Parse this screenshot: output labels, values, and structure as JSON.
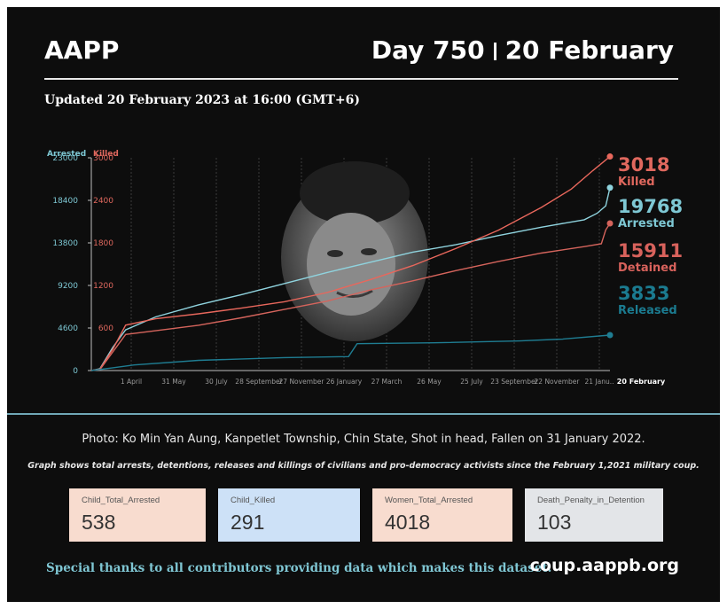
{
  "header": {
    "brand": "AAPP",
    "day": "Day 750",
    "date": "20 February",
    "updated": "Updated 20 February 2023 at 16:00 (GMT+6)"
  },
  "colors": {
    "arrested": "#8fd3de",
    "killed": "#e8675c",
    "detained": "#d5645c",
    "released": "#1f7d92",
    "arrested_label": "#7ec8d4",
    "killed_label": "#e0685e",
    "detained_label": "#d8625c",
    "released_label": "#1b7b90"
  },
  "chart_data": {
    "type": "line",
    "axis_titles": {
      "left": "Arrested",
      "right": "Killed"
    },
    "y_arrested_ticks": [
      "0",
      "4600",
      "9200",
      "13800",
      "18400",
      "23000"
    ],
    "y_killed_ticks": [
      "600",
      "1200",
      "1800",
      "2400",
      "3000"
    ],
    "x_ticks": [
      "1 April",
      "31 May",
      "30 July",
      "28 September",
      "27 November",
      "26 January",
      "27 March",
      "26 May",
      "25 July",
      "23 September",
      "22 November",
      "21 Janu..",
      "20 February"
    ],
    "ylim_arrested": [
      0,
      23000
    ],
    "ylim_killed": [
      0,
      3000
    ],
    "grid": "vertical dotted",
    "series": [
      {
        "name": "Arrested",
        "axis": "arrested",
        "final_value": 19768,
        "points": [
          [
            0,
            0
          ],
          [
            2,
            200
          ],
          [
            5,
            2500
          ],
          [
            8,
            4400
          ],
          [
            15,
            5800
          ],
          [
            25,
            7100
          ],
          [
            35,
            8200
          ],
          [
            45,
            9400
          ],
          [
            55,
            10600
          ],
          [
            65,
            11700
          ],
          [
            75,
            12800
          ],
          [
            85,
            13600
          ],
          [
            95,
            14600
          ],
          [
            105,
            15500
          ],
          [
            115,
            16300
          ],
          [
            118,
            17000
          ],
          [
            120,
            17800
          ],
          [
            121,
            19768
          ]
        ]
      },
      {
        "name": "Killed",
        "axis": "killed",
        "final_value": 3018,
        "points": [
          [
            0,
            0
          ],
          [
            2,
            20
          ],
          [
            5,
            300
          ],
          [
            8,
            640
          ],
          [
            15,
            730
          ],
          [
            25,
            800
          ],
          [
            35,
            880
          ],
          [
            45,
            970
          ],
          [
            55,
            1100
          ],
          [
            65,
            1280
          ],
          [
            75,
            1480
          ],
          [
            85,
            1720
          ],
          [
            95,
            1980
          ],
          [
            105,
            2300
          ],
          [
            112,
            2560
          ],
          [
            117,
            2820
          ],
          [
            121,
            3018
          ]
        ]
      },
      {
        "name": "Detained",
        "axis": "arrested",
        "final_value": 15911,
        "points": [
          [
            0,
            0
          ],
          [
            2,
            100
          ],
          [
            5,
            2000
          ],
          [
            8,
            3900
          ],
          [
            15,
            4300
          ],
          [
            25,
            4900
          ],
          [
            35,
            5700
          ],
          [
            45,
            6600
          ],
          [
            55,
            7500
          ],
          [
            65,
            8700
          ],
          [
            75,
            9700
          ],
          [
            85,
            10800
          ],
          [
            95,
            11800
          ],
          [
            105,
            12700
          ],
          [
            115,
            13400
          ],
          [
            119,
            13700
          ],
          [
            120,
            15200
          ],
          [
            121,
            15911
          ]
        ]
      },
      {
        "name": "Released",
        "axis": "arrested",
        "final_value": 3833,
        "points": [
          [
            0,
            0
          ],
          [
            5,
            300
          ],
          [
            10,
            600
          ],
          [
            25,
            1100
          ],
          [
            45,
            1400
          ],
          [
            60,
            1500
          ],
          [
            62,
            2900
          ],
          [
            80,
            3000
          ],
          [
            100,
            3200
          ],
          [
            110,
            3400
          ],
          [
            121,
            3833
          ]
        ]
      }
    ],
    "end_labels": [
      {
        "value": "3018",
        "name": "Killed"
      },
      {
        "value": "19768",
        "name": "Arrested"
      },
      {
        "value": "15911",
        "name": "Detained"
      },
      {
        "value": "3833",
        "name": "Released"
      }
    ]
  },
  "photo": {
    "icon": "portrait-photo"
  },
  "footer": {
    "photo_credit": "Photo: Ko Min Yan Aung,  Kanpetlet Township, Chin State, Shot in head, Fallen on 31 January 2022.",
    "graph_note": "Graph shows total arrests, detentions, releases and killings of civilians and pro-democracy activists since the February 1,2021 military coup.",
    "stats": [
      {
        "label": "Child_Total_Arrested",
        "value": "538",
        "color": "#f8dccf"
      },
      {
        "label": "Child_Killed",
        "value": "291",
        "color": "#cde1f7"
      },
      {
        "label": "Women_Total_Arrested",
        "value": "4018",
        "color": "#f8dccf"
      },
      {
        "label": "Death_Penalty_in_Detention",
        "value": "103",
        "color": "#e3e5e8"
      }
    ],
    "thanks": "Special thanks to all contributors providing data which makes this dataset.",
    "site": "coup.aappb.org"
  }
}
